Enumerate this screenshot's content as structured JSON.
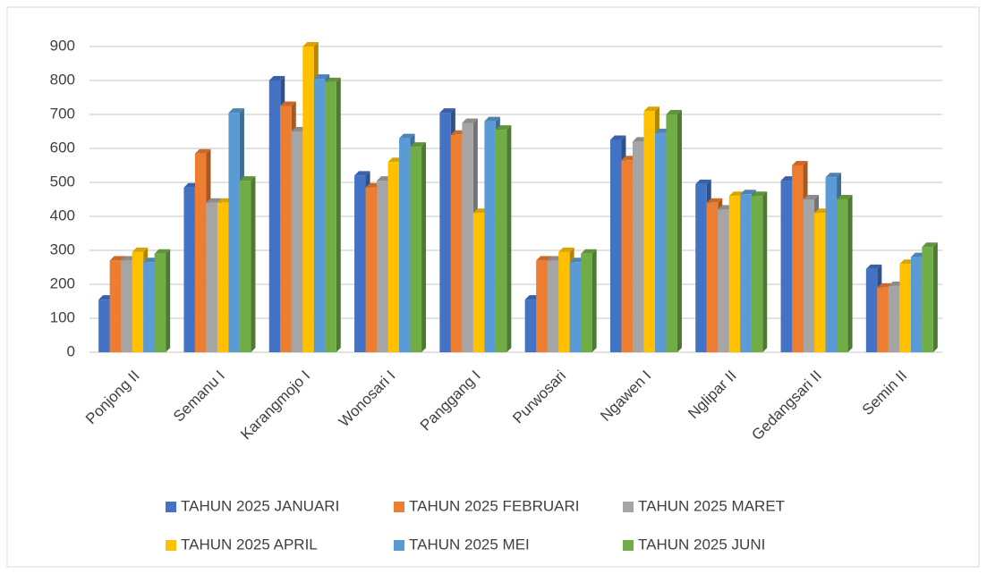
{
  "chart_data": {
    "type": "bar",
    "categories": [
      "Ponjong II",
      "Semanu I",
      "Karangmojo I",
      "Wonosari I",
      "Panggang I",
      "Purwosari",
      "Ngawen I",
      "Nglipar II",
      "Gedangsari II",
      "Semin II"
    ],
    "series": [
      {
        "name": "TAHUN 2025 JANUARI",
        "color": "#4472c4",
        "values": [
          155,
          485,
          800,
          520,
          705,
          155,
          625,
          495,
          505,
          245
        ]
      },
      {
        "name": "TAHUN 2025 FEBRUARI",
        "color": "#ed7d31",
        "values": [
          270,
          585,
          725,
          485,
          640,
          270,
          565,
          440,
          550,
          190
        ]
      },
      {
        "name": "TAHUN 2025 MARET",
        "color": "#a5a5a5",
        "values": [
          270,
          440,
          650,
          505,
          675,
          270,
          620,
          420,
          450,
          195
        ]
      },
      {
        "name": "TAHUN 2025 APRIL",
        "color": "#ffc000",
        "values": [
          295,
          440,
          900,
          560,
          410,
          295,
          710,
          460,
          410,
          260
        ]
      },
      {
        "name": "TAHUN 2025 MEI",
        "color": "#5b9bd5",
        "values": [
          265,
          705,
          805,
          630,
          680,
          265,
          645,
          465,
          515,
          280
        ]
      },
      {
        "name": "TAHUN 2025 JUNI",
        "color": "#70ad47",
        "values": [
          290,
          505,
          795,
          605,
          655,
          290,
          700,
          460,
          450,
          310
        ]
      }
    ],
    "ylim": [
      0,
      900
    ],
    "yticks": [
      0,
      100,
      200,
      300,
      400,
      500,
      600,
      700,
      800,
      900
    ],
    "grid": true,
    "legend": "bottom"
  }
}
